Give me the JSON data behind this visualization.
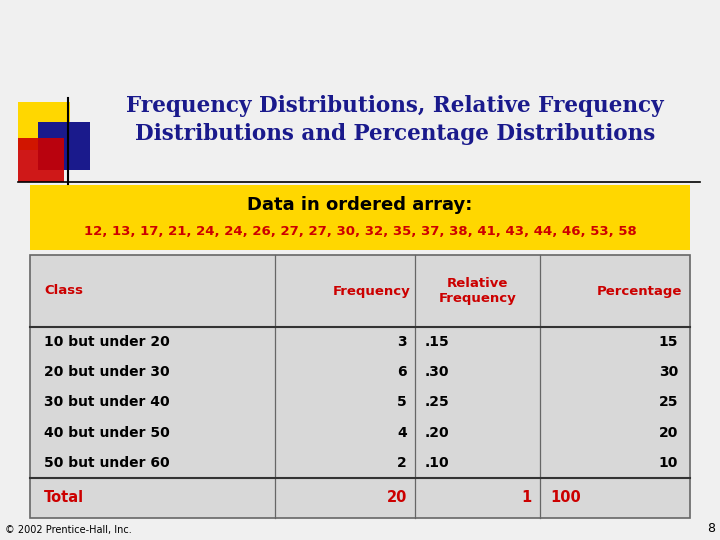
{
  "title_line1": "Frequency Distributions, Relative Frequency",
  "title_line2": "Distributions and Percentage Distributions",
  "title_color": "#1a1a8c",
  "title_fontsize": 15.5,
  "ordered_array_label": "Data in ordered array:",
  "ordered_array_data": "12, 13, 17, 21, 24, 24, 26, 27, 27, 30, 32, 35, 37, 38, 41, 43, 44, 46, 53, 58",
  "gold_bg": "#FFD700",
  "table_bg": "#d8d8d8",
  "header_color": "#cc0000",
  "data_color": "#000000",
  "total_color": "#cc0000",
  "col_headers": [
    "Class",
    "Frequency",
    "Relative\nFrequency",
    "Percentage"
  ],
  "rows": [
    [
      "10 but under 20",
      "3",
      ".15",
      "15"
    ],
    [
      "20 but under 30",
      "6",
      ".30",
      "30"
    ],
    [
      "30 but under 40",
      "5",
      ".25",
      "25"
    ],
    [
      "40 but under 50",
      "4",
      ".20",
      "20"
    ],
    [
      "50 but under 60",
      "2",
      ".10",
      "10"
    ]
  ],
  "total_row": [
    "Total",
    "20",
    "1",
    "100"
  ],
  "copyright": "© 2002 Prentice-Hall, Inc.",
  "page_number": "8",
  "logo_colors": {
    "yellow": "#FFD700",
    "red": "#cc0000",
    "blue": "#1a1a8c"
  },
  "bg_color": "#f0f0f0"
}
